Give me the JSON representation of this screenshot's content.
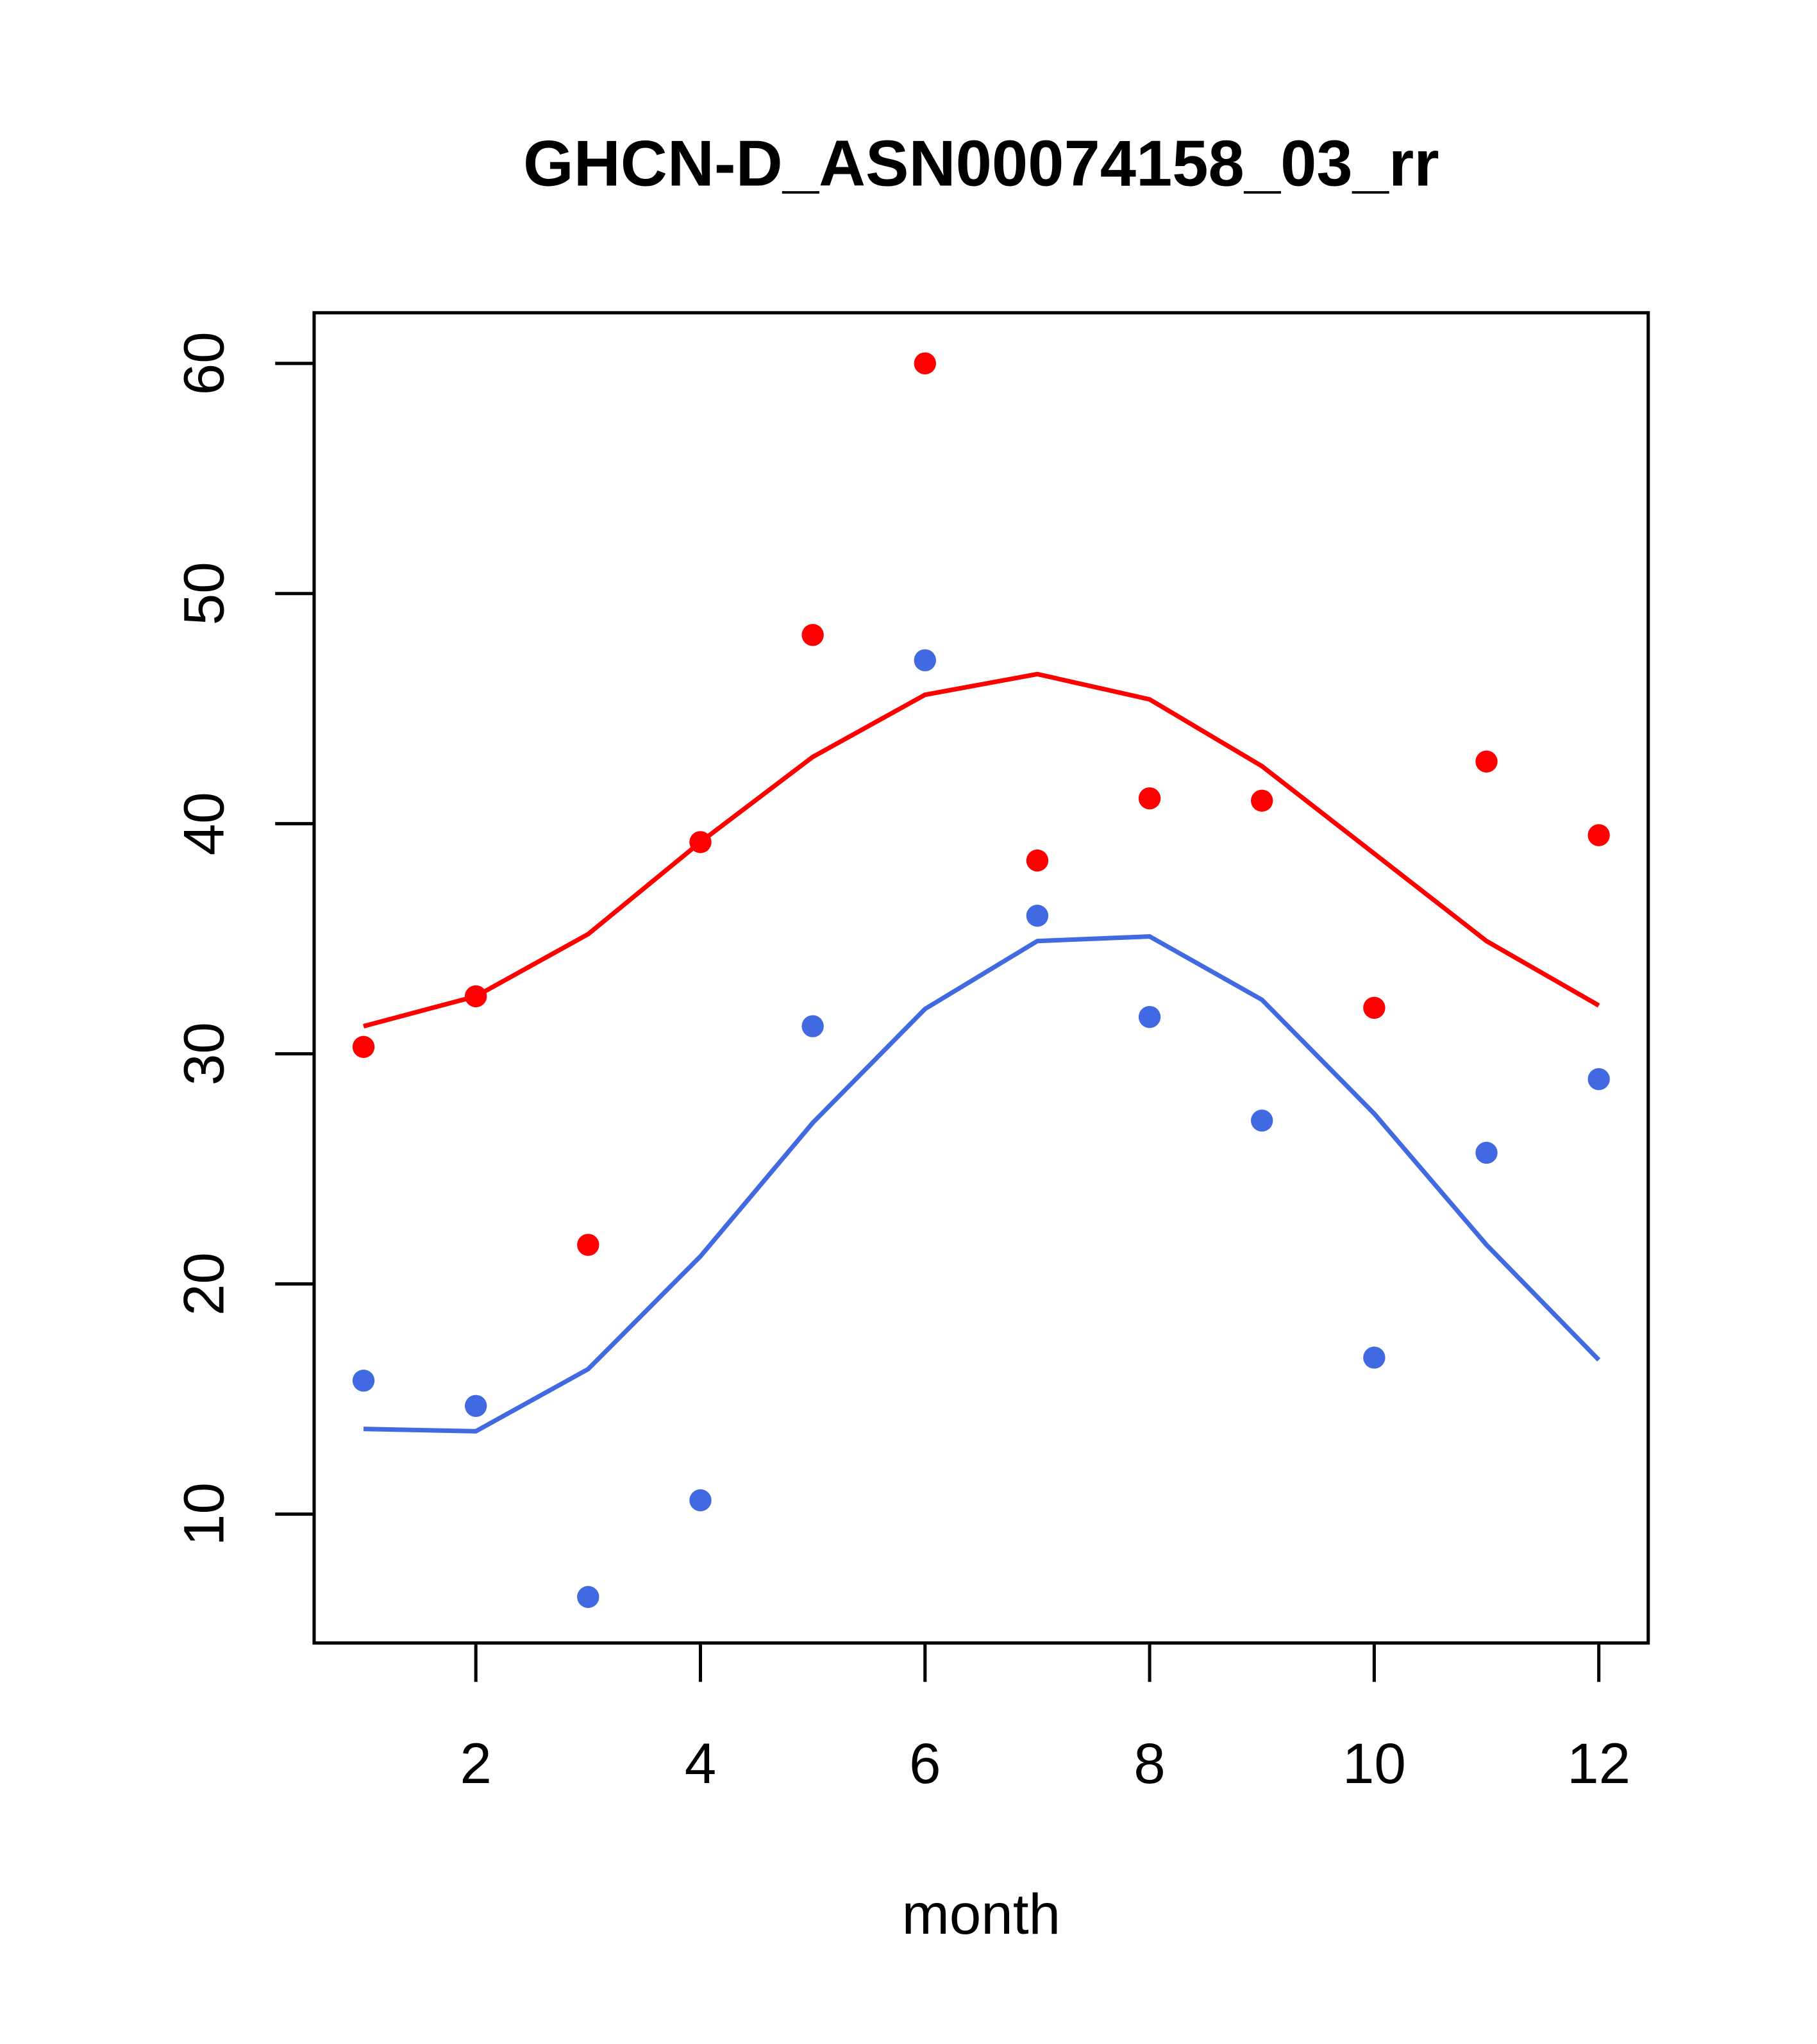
{
  "chart_data": {
    "type": "scatter",
    "title": "GHCN-D_ASN00074158_03_rr",
    "xlabel": "month",
    "ylabel": "",
    "xlim": [
      0.56,
      12.44
    ],
    "ylim": [
      4.4,
      62.2
    ],
    "xticks": [
      2,
      4,
      6,
      8,
      10,
      12
    ],
    "yticks": [
      10,
      20,
      30,
      40,
      50,
      60
    ],
    "grid": false,
    "x": [
      1,
      2,
      3,
      4,
      5,
      6,
      7,
      8,
      9,
      10,
      11,
      12
    ],
    "series": [
      {
        "name": "red points",
        "kind": "points",
        "color": "#ff0000",
        "values": [
          30.3,
          32.5,
          21.7,
          39.2,
          48.2,
          60.0,
          38.4,
          41.1,
          41.0,
          32.0,
          42.7,
          39.5
        ]
      },
      {
        "name": "red line",
        "kind": "line",
        "color": "#ff0000",
        "values": [
          31.2,
          32.5,
          35.2,
          39.2,
          42.9,
          45.6,
          46.5,
          45.4,
          42.5,
          38.7,
          34.9,
          32.1
        ]
      },
      {
        "name": "blue points",
        "kind": "points",
        "color": "#4169e1",
        "values": [
          15.8,
          14.7,
          6.4,
          10.6,
          31.2,
          47.1,
          36.0,
          31.6,
          27.1,
          16.8,
          25.7,
          28.9
        ]
      },
      {
        "name": "blue line",
        "kind": "line",
        "color": "#4169e1",
        "values": [
          13.7,
          13.6,
          16.3,
          21.2,
          27.0,
          31.95,
          34.9,
          35.1,
          32.35,
          27.4,
          21.7,
          16.7
        ]
      }
    ]
  }
}
